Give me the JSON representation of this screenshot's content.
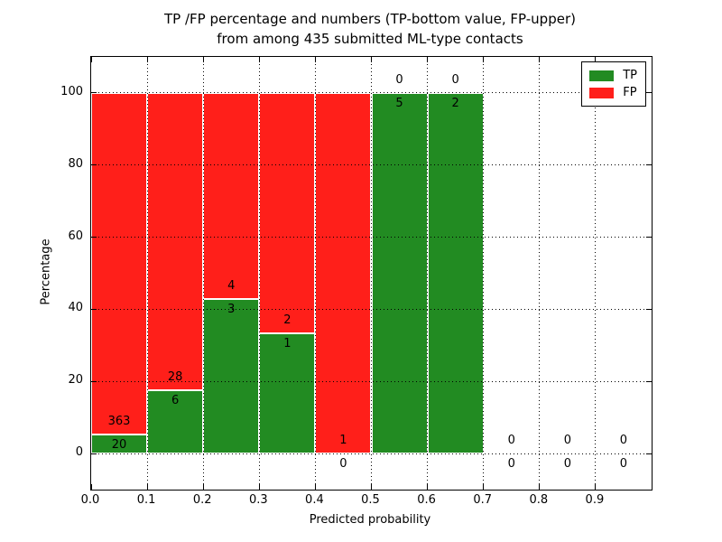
{
  "chart_data": {
    "type": "bar",
    "subtype": "stacked-percentage-histogram",
    "title_line1": "TP /FP percentage and numbers (TP-bottom value, FP-upper)",
    "title_line2": "from among 435 submitted ML-type contacts",
    "xlabel": "Predicted probability",
    "ylabel": "Percentage",
    "xlim": [
      0.0,
      1.0
    ],
    "ylim": [
      -10,
      110
    ],
    "grid": "dotted, both axes, drawn above bars",
    "legend_position": "upper right",
    "xticks": [
      "0.0",
      "0.1",
      "0.2",
      "0.3",
      "0.4",
      "0.5",
      "0.6",
      "0.7",
      "0.8",
      "0.9"
    ],
    "yticks": [
      "0",
      "20",
      "40",
      "60",
      "80",
      "100"
    ],
    "colors": {
      "tp": "#228B22",
      "fp": "#FF1F1A",
      "bar_edge": "#FFFFFF",
      "grid": "#000000"
    },
    "legend": [
      {
        "label": "TP",
        "color": "#228B22"
      },
      {
        "label": "FP",
        "color": "#FF1F1A"
      }
    ],
    "bins": [
      {
        "x0": 0.0,
        "x1": 0.1,
        "tp": 20,
        "fp": 363
      },
      {
        "x0": 0.1,
        "x1": 0.2,
        "tp": 6,
        "fp": 28
      },
      {
        "x0": 0.2,
        "x1": 0.3,
        "tp": 3,
        "fp": 4
      },
      {
        "x0": 0.3,
        "x1": 0.4,
        "tp": 1,
        "fp": 2
      },
      {
        "x0": 0.4,
        "x1": 0.5,
        "tp": 0,
        "fp": 1
      },
      {
        "x0": 0.5,
        "x1": 0.6,
        "tp": 5,
        "fp": 0
      },
      {
        "x0": 0.6,
        "x1": 0.7,
        "tp": 2,
        "fp": 0
      },
      {
        "x0": 0.7,
        "x1": 0.8,
        "tp": 0,
        "fp": 0
      },
      {
        "x0": 0.8,
        "x1": 0.9,
        "tp": 0,
        "fp": 0
      },
      {
        "x0": 0.9,
        "x1": 1.0,
        "tp": 0,
        "fp": 0
      }
    ],
    "bar_label_rule": "FP count printed just above the TP/FP boundary, TP count just below it"
  }
}
